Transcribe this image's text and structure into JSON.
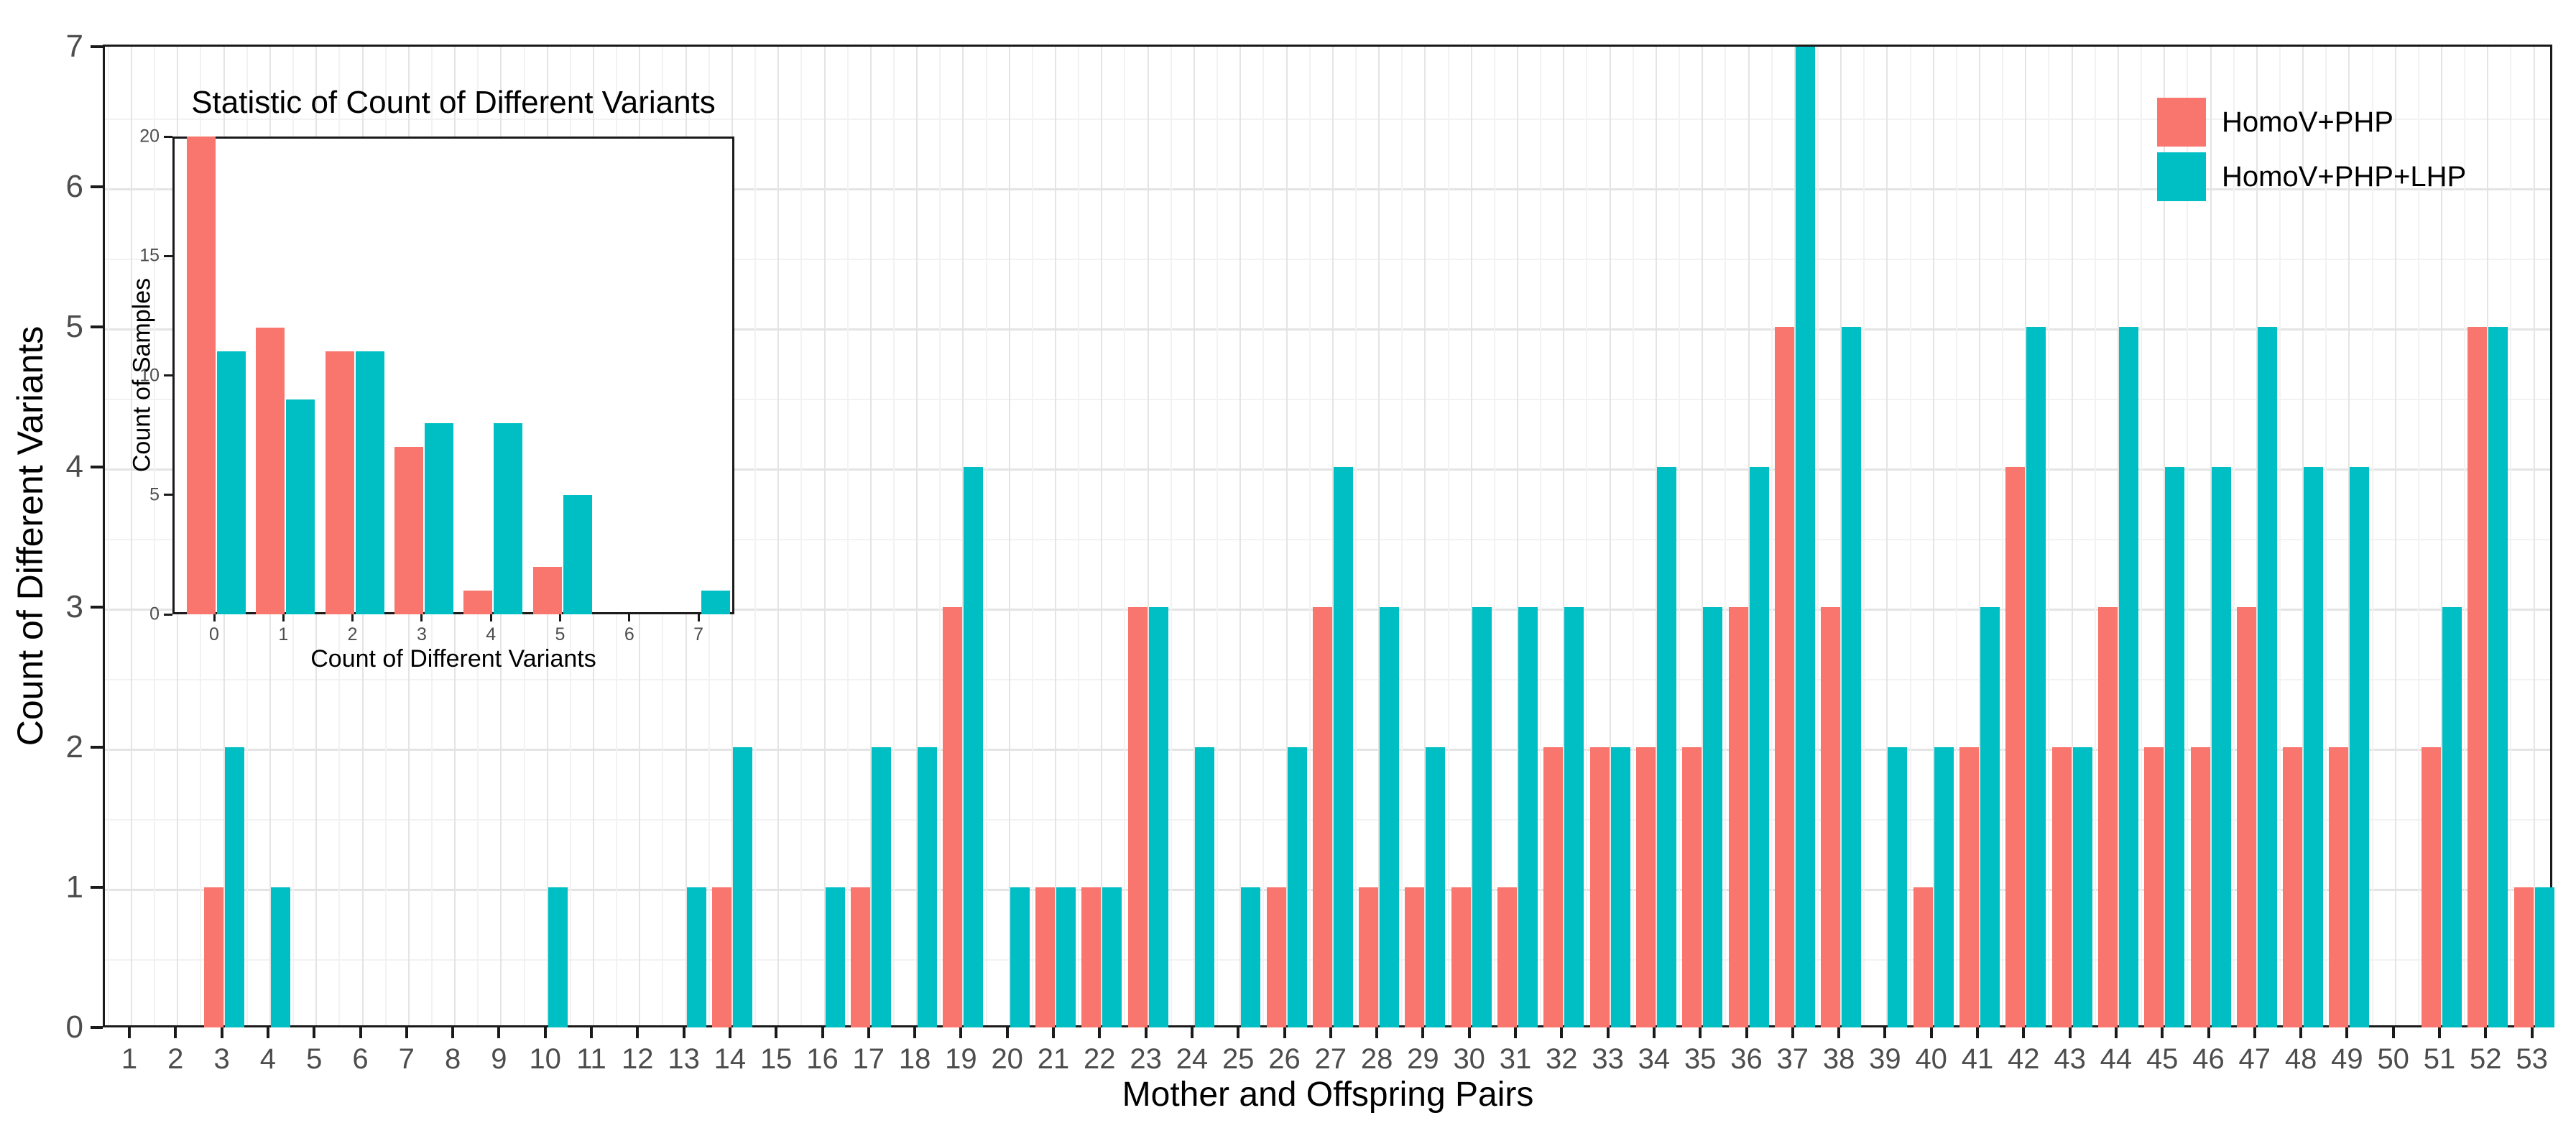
{
  "legend": {
    "items": [
      {
        "label": "HomoV+PHP",
        "color": "#F8766D"
      },
      {
        "label": "HomoV+PHP+LHP",
        "color": "#00BFC4"
      }
    ]
  },
  "chart_data": [
    {
      "type": "bar",
      "title": "",
      "xlabel": "Mother and Offspring Pairs",
      "ylabel": "Count of Different Variants",
      "categories": [
        1,
        2,
        3,
        4,
        5,
        6,
        7,
        8,
        9,
        10,
        11,
        12,
        13,
        14,
        15,
        16,
        17,
        18,
        19,
        20,
        21,
        22,
        23,
        24,
        25,
        26,
        27,
        28,
        29,
        30,
        31,
        32,
        33,
        34,
        35,
        36,
        37,
        38,
        39,
        40,
        41,
        42,
        43,
        44,
        45,
        46,
        47,
        48,
        49,
        50,
        51,
        52,
        53
      ],
      "series": [
        {
          "name": "HomoV+PHP",
          "color": "#F8766D",
          "values": [
            0,
            0,
            1,
            0,
            0,
            0,
            0,
            0,
            0,
            0,
            0,
            0,
            0,
            1,
            0,
            0,
            1,
            0,
            3,
            0,
            1,
            1,
            3,
            0,
            0,
            1,
            3,
            1,
            1,
            1,
            1,
            2,
            2,
            2,
            2,
            3,
            5,
            3,
            0,
            1,
            2,
            4,
            2,
            3,
            2,
            2,
            3,
            2,
            2,
            0,
            2,
            5,
            1
          ]
        },
        {
          "name": "HomoV+PHP+LHP",
          "color": "#00BFC4",
          "values": [
            0,
            0,
            2,
            1,
            0,
            0,
            0,
            0,
            0,
            1,
            0,
            0,
            1,
            2,
            0,
            1,
            2,
            2,
            4,
            1,
            1,
            1,
            3,
            2,
            1,
            2,
            4,
            3,
            2,
            3,
            3,
            3,
            2,
            4,
            3,
            4,
            7,
            5,
            2,
            2,
            3,
            5,
            2,
            5,
            4,
            4,
            5,
            4,
            4,
            0,
            3,
            5,
            1
          ]
        }
      ],
      "ylim": [
        0,
        7
      ],
      "yticks": [
        0,
        1,
        2,
        3,
        4,
        5,
        6,
        7
      ],
      "grid": "major+minor",
      "legend_position": "top-right-inside"
    },
    {
      "type": "bar",
      "title": "Statistic of Count of Different Variants",
      "xlabel": "Count of Different Variants",
      "ylabel": "Count of Samples",
      "categories": [
        0,
        1,
        2,
        3,
        4,
        5,
        6,
        7
      ],
      "series": [
        {
          "name": "HomoV+PHP",
          "color": "#F8766D",
          "values": [
            20,
            12,
            11,
            7,
            1,
            2,
            0,
            0
          ]
        },
        {
          "name": "HomoV+PHP+LHP",
          "color": "#00BFC4",
          "values": [
            11,
            9,
            11,
            8,
            8,
            5,
            0,
            1
          ]
        }
      ],
      "ylim": [
        0,
        20
      ],
      "yticks": [
        0,
        5,
        10,
        15,
        20
      ],
      "grid": "none"
    }
  ]
}
